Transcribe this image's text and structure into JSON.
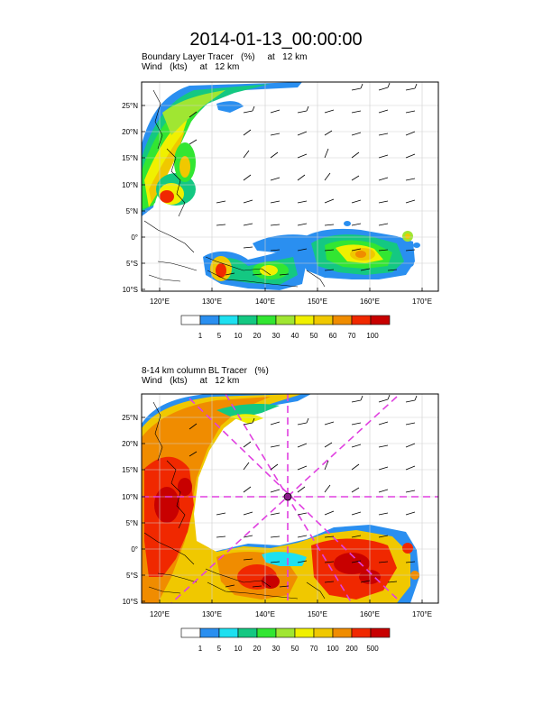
{
  "title": "2014-01-13_00:00:00",
  "panels": [
    {
      "title_line1": "Boundary Layer Tracer   (%)     at   12 km",
      "title_line2": "Wind   (kts)     at   12 km",
      "lat_labels": [
        "25°N",
        "20°N",
        "15°N",
        "10°N",
        "5°N",
        "0°",
        "5°S",
        "10°S"
      ],
      "lon_labels": [
        "120°E",
        "130°E",
        "140°E",
        "150°E",
        "160°E",
        "170°E"
      ],
      "colorbar_labels": [
        "1",
        "5",
        "10",
        "20",
        "30",
        "40",
        "50",
        "60",
        "70",
        "100"
      ]
    },
    {
      "title_line1": "8-14 km column BL Tracer   (%)",
      "title_line2": "Wind   (kts)     at   12 km",
      "lat_labels": [
        "25°N",
        "20°N",
        "15°N",
        "10°N",
        "5°N",
        "0°",
        "5°S",
        "10°S"
      ],
      "lon_labels": [
        "120°E",
        "130°E",
        "140°E",
        "150°E",
        "160°E",
        "170°E"
      ],
      "colorbar_labels": [
        "1",
        "5",
        "10",
        "20",
        "30",
        "50",
        "70",
        "100",
        "200",
        "500"
      ]
    }
  ],
  "colorbar_colors": [
    "#ffffff",
    "#2a8ff0",
    "#1ee0f0",
    "#14c882",
    "#32e632",
    "#a0e632",
    "#f0f000",
    "#f0c800",
    "#f08c00",
    "#f02800",
    "#c80000"
  ],
  "cross_marker": {
    "lat": 10,
    "lon": 145,
    "color": "#e040e0"
  }
}
